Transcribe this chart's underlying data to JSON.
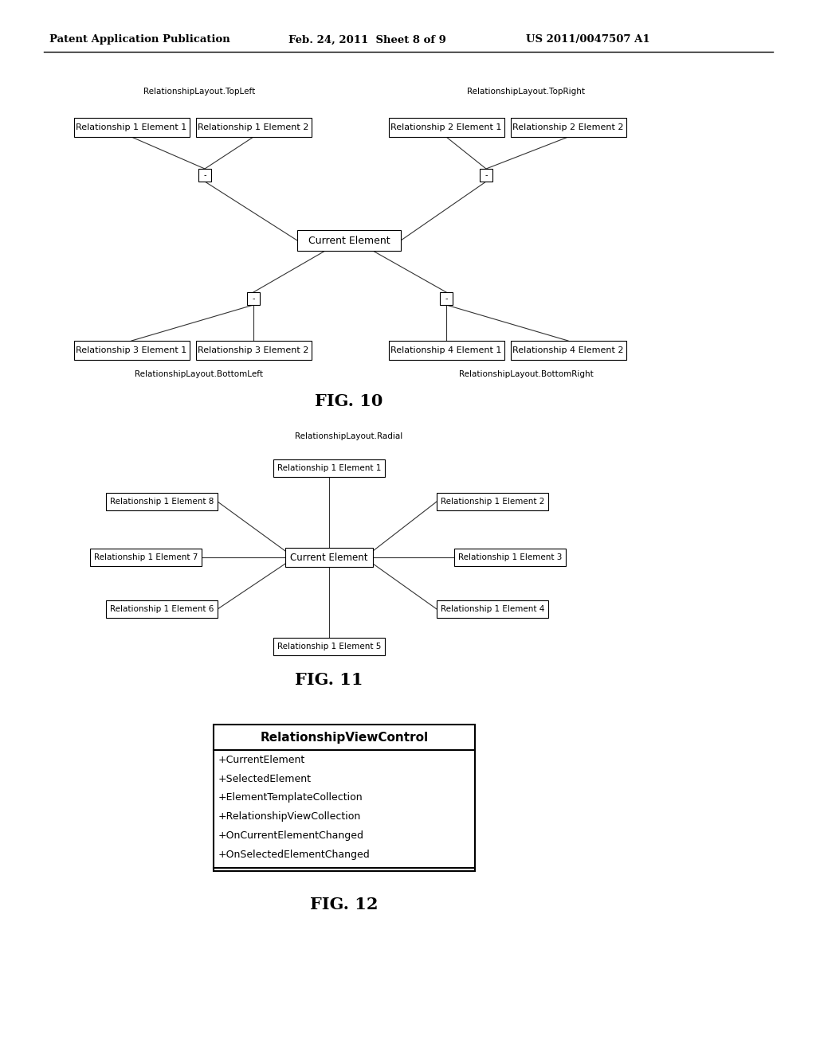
{
  "bg_color": "#ffffff",
  "header_text": "Patent Application Publication",
  "header_date": "Feb. 24, 2011  Sheet 8 of 9",
  "header_patent": "US 2011/0047507 A1",
  "fig10_label": "FIG. 10",
  "fig11_label": "FIG. 11",
  "fig12_label": "FIG. 12",
  "fig10_topleft_label": "RelationshipLayout.TopLeft",
  "fig10_topright_label": "RelationshipLayout.TopRight",
  "fig10_bottomleft_label": "RelationshipLayout.BottomLeft",
  "fig10_bottomright_label": "RelationshipLayout.BottomRight",
  "fig11_radial_label": "RelationshipLayout.Radial",
  "fig12_title": "RelationshipViewControl",
  "fig12_items": [
    "+CurrentElement",
    "+SelectedElement",
    "+ElementTemplateCollection",
    "+RelationshipViewCollection",
    "+OnCurrentElementChanged",
    "+OnSelectedElementChanged"
  ]
}
